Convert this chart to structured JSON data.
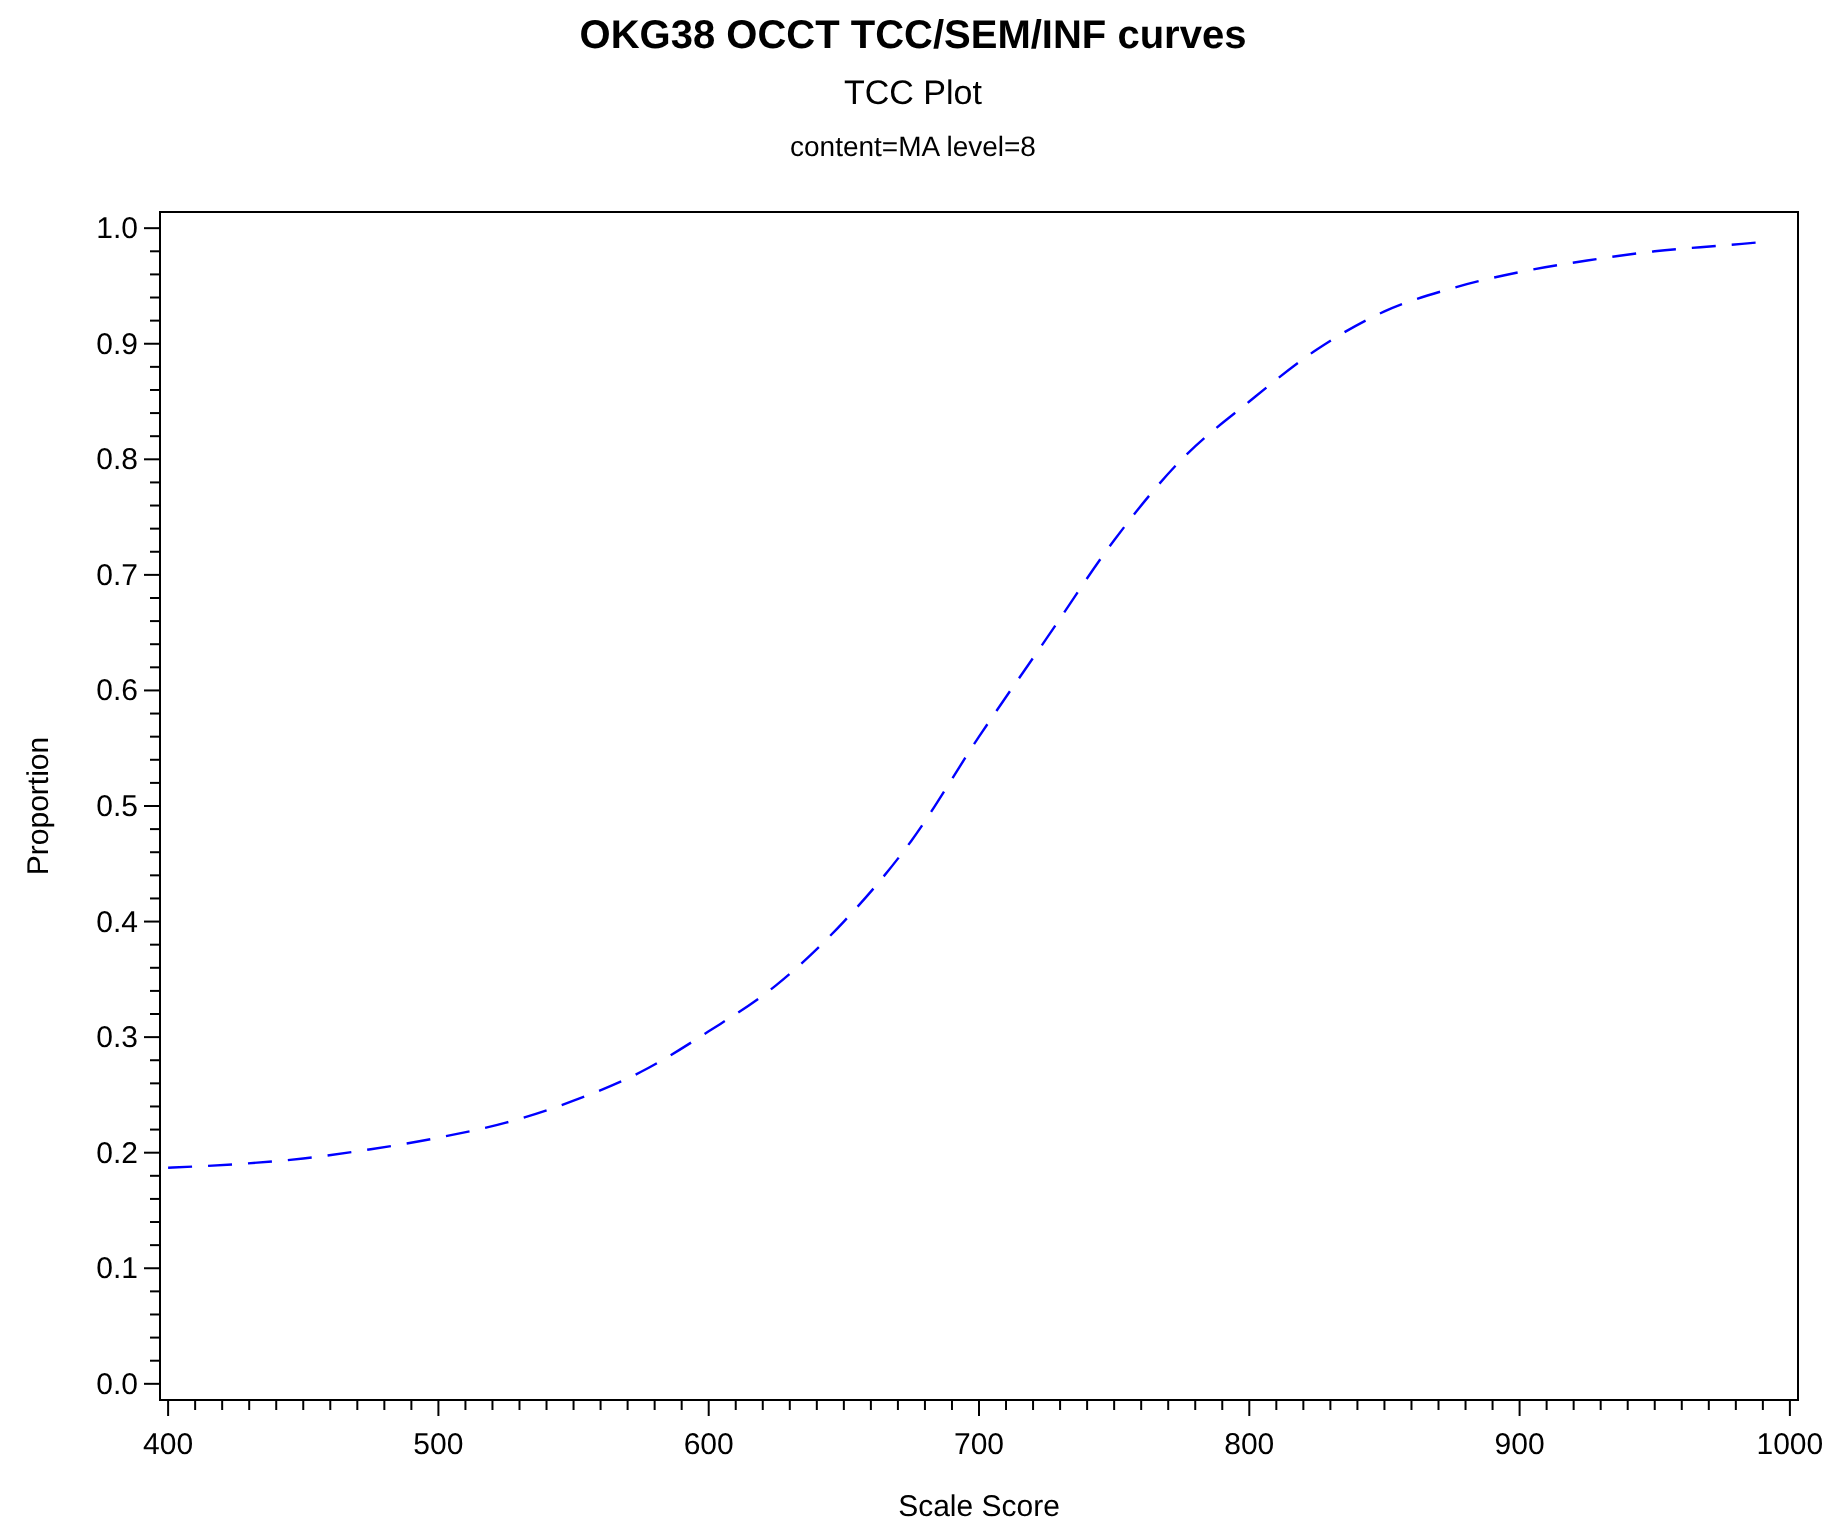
{
  "chart_data": {
    "type": "line",
    "title": "OKG38 OCCT TCC/SEM/INF curves",
    "subtitle": "TCC Plot",
    "annotations": [
      "content=MA level=8"
    ],
    "xlabel": "Scale Score",
    "ylabel": "Proportion",
    "xlim": [
      397,
      1003
    ],
    "ylim": [
      -0.014,
      1.014
    ],
    "xticks": [
      400,
      {
        "value": 410,
        "label": null
      },
      {
        "value": 420,
        "label": null
      },
      {
        "value": 430,
        "label": null
      },
      {
        "value": 440,
        "label": null
      },
      {
        "value": 450,
        "label": null
      },
      {
        "value": 460,
        "label": null
      },
      {
        "value": 470,
        "label": null
      },
      {
        "value": 480,
        "label": null
      },
      {
        "value": 490,
        "label": null
      },
      500,
      {
        "value": 510,
        "label": null
      },
      {
        "value": 520,
        "label": null
      },
      {
        "value": 530,
        "label": null
      },
      {
        "value": 540,
        "label": null
      },
      {
        "value": 550,
        "label": null
      },
      {
        "value": 560,
        "label": null
      },
      {
        "value": 570,
        "label": null
      },
      {
        "value": 580,
        "label": null
      },
      {
        "value": 590,
        "label": null
      },
      600,
      {
        "value": 610,
        "label": null
      },
      {
        "value": 620,
        "label": null
      },
      {
        "value": 630,
        "label": null
      },
      {
        "value": 640,
        "label": null
      },
      {
        "value": 650,
        "label": null
      },
      {
        "value": 660,
        "label": null
      },
      {
        "value": 670,
        "label": null
      },
      {
        "value": 680,
        "label": null
      },
      {
        "value": 690,
        "label": null
      },
      700,
      {
        "value": 710,
        "label": null
      },
      {
        "value": 720,
        "label": null
      },
      {
        "value": 730,
        "label": null
      },
      {
        "value": 740,
        "label": null
      },
      {
        "value": 750,
        "label": null
      },
      {
        "value": 760,
        "label": null
      },
      {
        "value": 770,
        "label": null
      },
      {
        "value": 780,
        "label": null
      },
      {
        "value": 790,
        "label": null
      },
      800,
      {
        "value": 810,
        "label": null
      },
      {
        "value": 820,
        "label": null
      },
      {
        "value": 830,
        "label": null
      },
      {
        "value": 840,
        "label": null
      },
      {
        "value": 850,
        "label": null
      },
      {
        "value": 860,
        "label": null
      },
      {
        "value": 870,
        "label": null
      },
      {
        "value": 880,
        "label": null
      },
      {
        "value": 890,
        "label": null
      },
      900,
      {
        "value": 910,
        "label": null
      },
      {
        "value": 920,
        "label": null
      },
      {
        "value": 930,
        "label": null
      },
      {
        "value": 940,
        "label": null
      },
      {
        "value": 950,
        "label": null
      },
      {
        "value": 960,
        "label": null
      },
      {
        "value": 970,
        "label": null
      },
      {
        "value": 980,
        "label": null
      },
      {
        "value": 990,
        "label": null
      },
      1000
    ],
    "yticks": [
      {
        "value": 0,
        "label": "0.0"
      },
      {
        "value": 0.02,
        "label": null
      },
      {
        "value": 0.04,
        "label": null
      },
      {
        "value": 0.06,
        "label": null
      },
      {
        "value": 0.08,
        "label": null
      },
      0.1,
      {
        "value": 0.12,
        "label": null
      },
      {
        "value": 0.14,
        "label": null
      },
      {
        "value": 0.16,
        "label": null
      },
      {
        "value": 0.18,
        "label": null
      },
      0.2,
      {
        "value": 0.22,
        "label": null
      },
      {
        "value": 0.24,
        "label": null
      },
      {
        "value": 0.26,
        "label": null
      },
      {
        "value": 0.28,
        "label": null
      },
      0.3,
      {
        "value": 0.32,
        "label": null
      },
      {
        "value": 0.34,
        "label": null
      },
      {
        "value": 0.36,
        "label": null
      },
      {
        "value": 0.38,
        "label": null
      },
      0.4,
      {
        "value": 0.42,
        "label": null
      },
      {
        "value": 0.44,
        "label": null
      },
      {
        "value": 0.46,
        "label": null
      },
      {
        "value": 0.48,
        "label": null
      },
      0.5,
      {
        "value": 0.52,
        "label": null
      },
      {
        "value": 0.54,
        "label": null
      },
      {
        "value": 0.56,
        "label": null
      },
      {
        "value": 0.58,
        "label": null
      },
      0.6,
      {
        "value": 0.62,
        "label": null
      },
      {
        "value": 0.64,
        "label": null
      },
      {
        "value": 0.66,
        "label": null
      },
      {
        "value": 0.68,
        "label": null
      },
      0.7,
      {
        "value": 0.72,
        "label": null
      },
      {
        "value": 0.74,
        "label": null
      },
      {
        "value": 0.76,
        "label": null
      },
      {
        "value": 0.78,
        "label": null
      },
      0.8,
      {
        "value": 0.82,
        "label": null
      },
      {
        "value": 0.84,
        "label": null
      },
      {
        "value": 0.86,
        "label": null
      },
      {
        "value": 0.88,
        "label": null
      },
      0.9,
      {
        "value": 0.92,
        "label": null
      },
      {
        "value": 0.94,
        "label": null
      },
      {
        "value": 0.96,
        "label": null
      },
      {
        "value": 0.98,
        "label": null
      },
      {
        "value": 1,
        "label": "1.0"
      }
    ],
    "grid": false,
    "marker": "none",
    "line_style": "dashed",
    "x": [
      400,
      425,
      450,
      475,
      500,
      525,
      550,
      575,
      600,
      625,
      650,
      675,
      700,
      725,
      750,
      775,
      800,
      825,
      850,
      875,
      900,
      925,
      950,
      975,
      990
    ],
    "series": [
      {
        "color": "#0000ff",
        "values": [
          0.187,
          0.19,
          0.195,
          0.203,
          0.213,
          0.226,
          0.245,
          0.27,
          0.305,
          0.345,
          0.4,
          0.47,
          0.56,
          0.645,
          0.73,
          0.8,
          0.85,
          0.895,
          0.928,
          0.948,
          0.962,
          0.972,
          0.98,
          0.985,
          0.988
        ]
      }
    ]
  }
}
